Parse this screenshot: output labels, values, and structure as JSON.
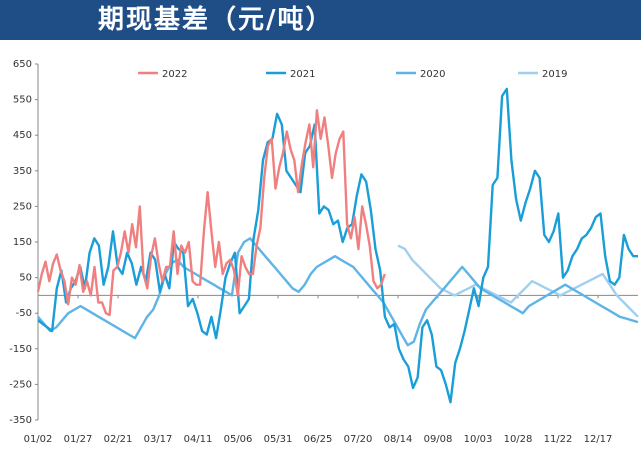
{
  "header": {
    "title": "期现基差（元/吨）",
    "background": "#1f4e87"
  },
  "chart_data": {
    "type": "line",
    "title": "期现基差（元/吨）",
    "xlabel": "",
    "ylabel": "",
    "ylim": [
      -350,
      650
    ],
    "yticks": [
      650,
      550,
      450,
      350,
      250,
      150,
      50,
      -50,
      -150,
      -250,
      -350
    ],
    "x_tick_labels": [
      "01/02",
      "01/27",
      "02/21",
      "03/17",
      "04/11",
      "05/06",
      "05/31",
      "06/25",
      "07/20",
      "08/14",
      "09/08",
      "10/03",
      "10/28",
      "11/22",
      "12/17"
    ],
    "grid": false,
    "legend_position": "top",
    "series": [
      {
        "name": "2022",
        "color": "#f08080",
        "x_range": [
          0,
          0.578
        ],
        "values": [
          10,
          60,
          95,
          40,
          90,
          115,
          70,
          40,
          -25,
          50,
          30,
          85,
          10,
          40,
          0,
          80,
          -20,
          -20,
          -50,
          -55,
          70,
          80,
          120,
          180,
          120,
          200,
          135,
          250,
          60,
          20,
          110,
          160,
          90,
          40,
          80,
          80,
          180,
          60,
          140,
          120,
          150,
          40,
          30,
          30,
          180,
          290,
          180,
          80,
          150,
          60,
          90,
          100,
          70,
          0,
          110,
          80,
          60,
          60,
          140,
          190,
          330,
          420,
          440,
          300,
          360,
          400,
          460,
          410,
          380,
          290,
          370,
          430,
          480,
          360,
          520,
          440,
          500,
          420,
          330,
          400,
          440,
          460,
          200,
          160,
          220,
          130,
          250,
          200,
          140,
          40,
          20,
          30,
          60
        ]
      },
      {
        "name": "2021",
        "color": "#1a9ed8",
        "x_range": [
          0,
          1
        ],
        "values": [
          -70,
          -80,
          -90,
          -100,
          20,
          70,
          -20,
          20,
          40,
          80,
          20,
          120,
          160,
          140,
          30,
          80,
          180,
          80,
          60,
          120,
          90,
          30,
          80,
          40,
          120,
          100,
          10,
          60,
          20,
          150,
          130,
          120,
          -30,
          -10,
          -50,
          -100,
          -110,
          -60,
          -120,
          -40,
          50,
          90,
          120,
          -50,
          -30,
          -10,
          160,
          240,
          380,
          430,
          440,
          510,
          480,
          350,
          330,
          310,
          290,
          400,
          420,
          480,
          230,
          250,
          240,
          200,
          210,
          150,
          190,
          200,
          280,
          340,
          320,
          240,
          130,
          70,
          -60,
          -90,
          -80,
          -150,
          -180,
          -200,
          -260,
          -230,
          -90,
          -70,
          -110,
          -200,
          -210,
          -250,
          -300,
          -190,
          -150,
          -100,
          -40,
          20,
          -30,
          50,
          80,
          310,
          330,
          560,
          580,
          380,
          270,
          210,
          260,
          300,
          350,
          330,
          170,
          150,
          180,
          230,
          50,
          70,
          110,
          130,
          160,
          170,
          190,
          220,
          230,
          110,
          40,
          30,
          50,
          170,
          130,
          110,
          110
        ]
      },
      {
        "name": "2020",
        "color": "#5fb4e6",
        "x_range": [
          0,
          1
        ],
        "values": [
          -60,
          -80,
          -100,
          -90,
          -70,
          -50,
          -40,
          -30,
          -40,
          -50,
          -60,
          -70,
          -80,
          -90,
          -100,
          -110,
          -120,
          -90,
          -60,
          -40,
          0,
          60,
          90,
          100,
          80,
          70,
          60,
          50,
          40,
          30,
          20,
          10,
          0,
          120,
          150,
          160,
          140,
          120,
          100,
          80,
          60,
          40,
          20,
          10,
          30,
          60,
          80,
          90,
          100,
          110,
          100,
          90,
          80,
          60,
          40,
          20,
          0,
          -20,
          -50,
          -80,
          -110,
          -140,
          -130,
          -80,
          -40,
          -20,
          0,
          20,
          40,
          60,
          80,
          60,
          40,
          20,
          10,
          0,
          -10,
          -20,
          -30,
          -40,
          -50,
          -30,
          -20,
          -10,
          0,
          10,
          20,
          30,
          20,
          10,
          0,
          -10,
          -20,
          -30,
          -40,
          -50,
          -60,
          -65,
          -70,
          -75
        ]
      },
      {
        "name": "2019",
        "color": "#9fd0f0",
        "x_range": [
          0.6,
          1
        ],
        "values": [
          140,
          130,
          100,
          80,
          60,
          40,
          20,
          10,
          0,
          10,
          20,
          30,
          20,
          10,
          0,
          -10,
          -20,
          0,
          20,
          40,
          30,
          20,
          10,
          0,
          10,
          20,
          30,
          40,
          50,
          60,
          30,
          0,
          -20,
          -40,
          -60
        ]
      }
    ]
  }
}
